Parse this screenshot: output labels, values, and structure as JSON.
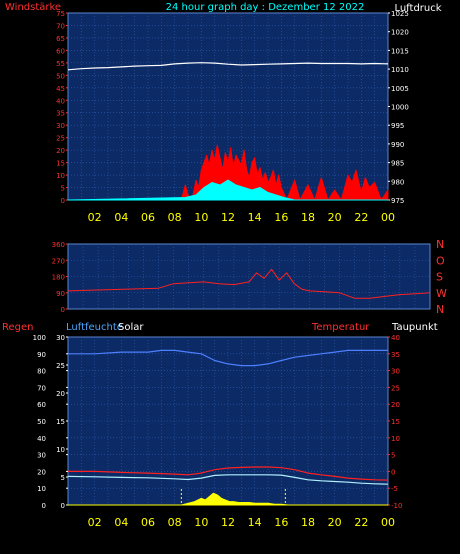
{
  "header": {
    "title": "24 hour graph day : Dezember 12 2022",
    "left_label": "Windstärke",
    "right_label": "Luftdruck"
  },
  "colors": {
    "background": "#000000",
    "plot_bg": "#0b2a66",
    "grid": "#2d5fae",
    "wind_gust": "#ff0000",
    "wind_avg": "#ffffff",
    "wind_low": "#00ffff",
    "pressure": "#ffffff",
    "direction": "#ff2020",
    "humidity": "#ffffff",
    "temperature": "#ff2020",
    "dewpoint": "#b0f0ff",
    "solar": "#ffff00",
    "title": "#00ffff",
    "hour_labels": "#ffff00",
    "left_axis": "#ff3030",
    "right_axis": "#ffffff"
  },
  "chart_data": [
    {
      "type": "line",
      "left_label": "Windstärke",
      "right_label": "Luftdruck",
      "left_ylim": [
        0,
        75
      ],
      "left_ticks": [
        "0",
        "5",
        "10",
        "15",
        "20",
        "25",
        "30",
        "35",
        "40",
        "45",
        "50",
        "55",
        "60",
        "65",
        "70",
        "75"
      ],
      "right_ylim": [
        975,
        1025
      ],
      "right_ticks": [
        "975",
        "980",
        "985",
        "990",
        "995",
        "1000",
        "1005",
        "1010",
        "1015",
        "1020",
        "1025"
      ],
      "x_ticks": [
        "02",
        "04",
        "06",
        "08",
        "10",
        "12",
        "14",
        "16",
        "18",
        "20",
        "22",
        "00"
      ],
      "x_range": [
        0,
        24
      ],
      "grid": true,
      "series": [
        {
          "key": "pressure",
          "axis": "right",
          "x": [
            0,
            1,
            2,
            3,
            4,
            5,
            6,
            7,
            8,
            9,
            10,
            11,
            12,
            13,
            14,
            15,
            16,
            17,
            18,
            19,
            20,
            21,
            22,
            23,
            24
          ],
          "y": [
            1009.8,
            1010.1,
            1010.3,
            1010.4,
            1010.6,
            1010.8,
            1010.9,
            1011.0,
            1011.4,
            1011.6,
            1011.7,
            1011.6,
            1011.3,
            1011.1,
            1011.2,
            1011.3,
            1011.4,
            1011.5,
            1011.6,
            1011.5,
            1011.5,
            1011.5,
            1011.4,
            1011.5,
            1011.4
          ]
        },
        {
          "key": "wind_gust",
          "axis": "left",
          "x": [
            0,
            8.5,
            8.8,
            9.0,
            9.3,
            9.6,
            9.8,
            10.0,
            10.2,
            10.4,
            10.6,
            10.8,
            11.0,
            11.2,
            11.4,
            11.6,
            11.8,
            12.0,
            12.2,
            12.4,
            12.6,
            12.8,
            13.0,
            13.2,
            13.4,
            13.6,
            13.8,
            14.0,
            14.2,
            14.4,
            14.6,
            14.8,
            15.0,
            15.2,
            15.4,
            15.6,
            15.8,
            16.0,
            16.4,
            17.0,
            17.4,
            18.0,
            18.5,
            19.0,
            19.5,
            20.0,
            20.5,
            21.0,
            21.3,
            21.6,
            22.0,
            22.3,
            22.6,
            23.0,
            23.5,
            24
          ],
          "y": [
            0,
            0,
            6,
            2,
            0,
            8,
            5,
            12,
            15,
            18,
            14,
            20,
            16,
            22,
            17,
            12,
            19,
            15,
            21,
            13,
            18,
            16,
            14,
            20,
            12,
            9,
            15,
            17,
            10,
            13,
            8,
            11,
            7,
            9,
            12,
            6,
            10,
            5,
            0,
            8,
            0,
            6,
            0,
            9,
            0,
            4,
            0,
            10,
            7,
            12,
            3,
            9,
            5,
            7,
            0,
            4
          ]
        },
        {
          "key": "wind_avg",
          "axis": "left",
          "x": [
            0,
            8.8,
            9.6,
            10.2,
            10.8,
            11.4,
            12.0,
            12.6,
            13.2,
            13.8,
            14.4,
            15.0,
            15.6,
            16.2,
            17,
            24
          ],
          "y": [
            0,
            1,
            2,
            5,
            7,
            6,
            8,
            6,
            5,
            4,
            5,
            3,
            2,
            1,
            0,
            0
          ]
        }
      ]
    },
    {
      "type": "line",
      "right_labels": [
        "N",
        "W",
        "S",
        "O",
        "N"
      ],
      "left_ylim": [
        0,
        360
      ],
      "left_ticks": [
        "0",
        "90",
        "180",
        "270",
        "360"
      ],
      "x_range": [
        0,
        24
      ],
      "grid": true,
      "series": [
        {
          "key": "direction",
          "axis": "left",
          "x": [
            0,
            2,
            4,
            6,
            7,
            8,
            9,
            10,
            11,
            12,
            12.5,
            13,
            13.5,
            14,
            14.5,
            15,
            15.5,
            16,
            17,
            18,
            19,
            20,
            21,
            22,
            23,
            24
          ],
          "y": [
            100,
            105,
            110,
            115,
            140,
            145,
            150,
            140,
            135,
            150,
            200,
            170,
            220,
            160,
            200,
            140,
            110,
            100,
            95,
            90,
            60,
            60,
            70,
            80,
            85,
            90
          ]
        }
      ]
    },
    {
      "type": "line",
      "left_label": "Regen",
      "humidity_label": "Luftfeuchte",
      "solar_label": "Solar",
      "temp_label": "Temperatur",
      "dew_label": "Taupunkt",
      "left_ylim": [
        0,
        100
      ],
      "left_ticks": [
        "0",
        "10",
        "20",
        "30",
        "40",
        "50",
        "60",
        "70",
        "80",
        "90",
        "100"
      ],
      "hum_ylim": [
        0,
        30
      ],
      "hum_ticks": [
        "0",
        "5",
        "10",
        "15",
        "20",
        "25",
        "30"
      ],
      "right_ylim": [
        -10,
        40
      ],
      "right_ticks": [
        "-10",
        "-5",
        "0",
        "5",
        "10",
        "15",
        "20",
        "25",
        "30",
        "35",
        "40"
      ],
      "x_ticks": [
        "02",
        "04",
        "06",
        "08",
        "10",
        "12",
        "14",
        "16",
        "18",
        "20",
        "22",
        "00"
      ],
      "x_range": [
        0,
        24
      ],
      "grid": true,
      "series": [
        {
          "key": "humidity",
          "axis": "left",
          "x": [
            0,
            2,
            4,
            6,
            7,
            8,
            9,
            10,
            11,
            12,
            13,
            14,
            15,
            16,
            17,
            18,
            19,
            20,
            21,
            22,
            23,
            24
          ],
          "y": [
            90,
            90,
            91,
            91,
            92,
            92,
            91,
            90,
            86,
            84,
            83,
            83,
            84,
            86,
            88,
            89,
            90,
            91,
            92,
            92,
            92,
            92
          ]
        },
        {
          "key": "temperature",
          "axis": "right",
          "x": [
            0,
            2,
            4,
            6,
            8,
            9,
            10,
            11,
            12,
            13,
            14,
            15,
            16,
            17,
            18,
            19,
            20,
            21,
            22,
            23,
            24
          ],
          "y": [
            0,
            0,
            -0.3,
            -0.5,
            -0.8,
            -1,
            -0.5,
            0.5,
            1,
            1.2,
            1.3,
            1.3,
            1.1,
            0.5,
            -0.5,
            -1,
            -1.5,
            -2,
            -2.3,
            -2.5,
            -2.6
          ]
        },
        {
          "key": "dewpoint",
          "axis": "right",
          "x": [
            0,
            2,
            4,
            6,
            8,
            9,
            10,
            11,
            12,
            13,
            14,
            15,
            16,
            17,
            18,
            19,
            20,
            21,
            22,
            23,
            24
          ],
          "y": [
            -1.5,
            -1.6,
            -1.8,
            -1.9,
            -2.2,
            -2.4,
            -2,
            -1.2,
            -1,
            -1,
            -1,
            -1,
            -1.1,
            -1.8,
            -2.5,
            -2.8,
            -3,
            -3.2,
            -3.5,
            -3.7,
            -3.8
          ]
        },
        {
          "key": "solar",
          "axis": "left",
          "x": [
            0,
            8.5,
            9,
            9.5,
            10,
            10.3,
            10.6,
            10.9,
            11.2,
            11.5,
            11.8,
            12.1,
            12.4,
            12.8,
            13.2,
            13.6,
            14,
            14.5,
            15,
            15.5,
            16,
            16.5,
            24
          ],
          "y": [
            0,
            0,
            1,
            2,
            4,
            3,
            5,
            7,
            6,
            4,
            3,
            2,
            2,
            1.5,
            1.5,
            1.5,
            1,
            1,
            1,
            0.5,
            0.5,
            0,
            0
          ]
        }
      ],
      "markers_x": [
        8.5,
        16.3
      ]
    }
  ]
}
